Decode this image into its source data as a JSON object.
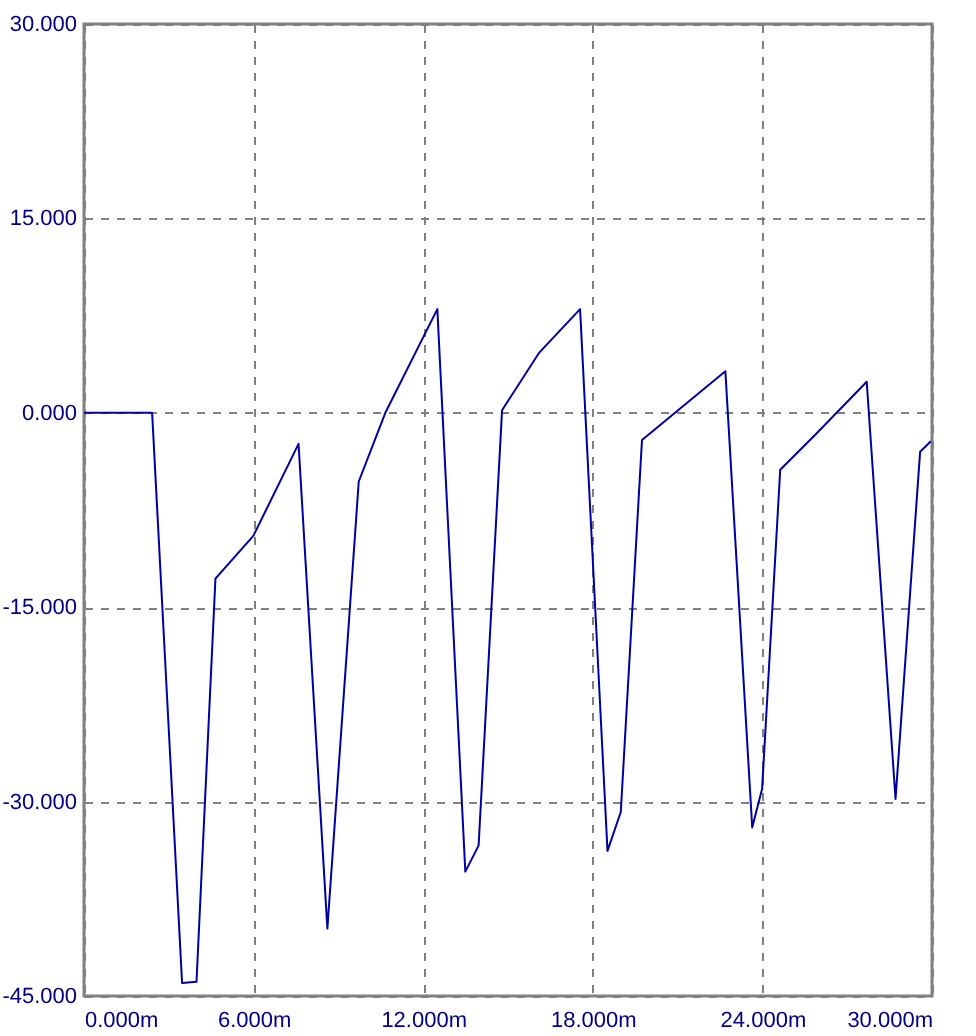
{
  "chart_data": {
    "type": "line",
    "x": [
      0,
      2.41,
      3.47,
      3.98,
      4.65,
      5.99,
      7.59,
      8.61,
      9.72,
      10.66,
      12.5,
      13.49,
      13.96,
      14.79,
      16.09,
      17.55,
      18.52,
      18.99,
      19.74,
      22.69,
      23.64,
      23.99,
      24.63,
      25.87,
      27.69,
      28.71,
      29.58,
      29.96
    ],
    "series": [
      {
        "color": "#0000a0",
        "values": [
          0,
          0,
          -44.0,
          -43.9,
          -12.8,
          -9.5,
          -2.4,
          -39.8,
          -5.3,
          0,
          8.0,
          -35.4,
          -33.4,
          0.2,
          4.6,
          8.0,
          -33.8,
          -30.8,
          -2.1,
          3.2,
          -32.0,
          -29.0,
          -4.4,
          -1.7,
          2.4,
          -29.8,
          -3.0,
          -2.2
        ]
      }
    ],
    "xlim": [
      0,
      30
    ],
    "ylim": [
      -45,
      30
    ],
    "xticks": [
      {
        "value": 0,
        "label": "0.000m"
      },
      {
        "value": 6,
        "label": "6.000m"
      },
      {
        "value": 12,
        "label": "12.000m"
      },
      {
        "value": 18,
        "label": "18.000m"
      },
      {
        "value": 24,
        "label": "24.000m"
      },
      {
        "value": 30,
        "label": "30.000m"
      }
    ],
    "yticks": [
      {
        "value": -45,
        "label": "-45.000"
      },
      {
        "value": -30,
        "label": "-30.000"
      },
      {
        "value": -15,
        "label": "-15.000"
      },
      {
        "value": 0,
        "label": "0.000"
      },
      {
        "value": 15,
        "label": "15.000"
      },
      {
        "value": 30,
        "label": "30.000"
      }
    ],
    "grid": true,
    "marker": "none",
    "line_style": "solid"
  }
}
